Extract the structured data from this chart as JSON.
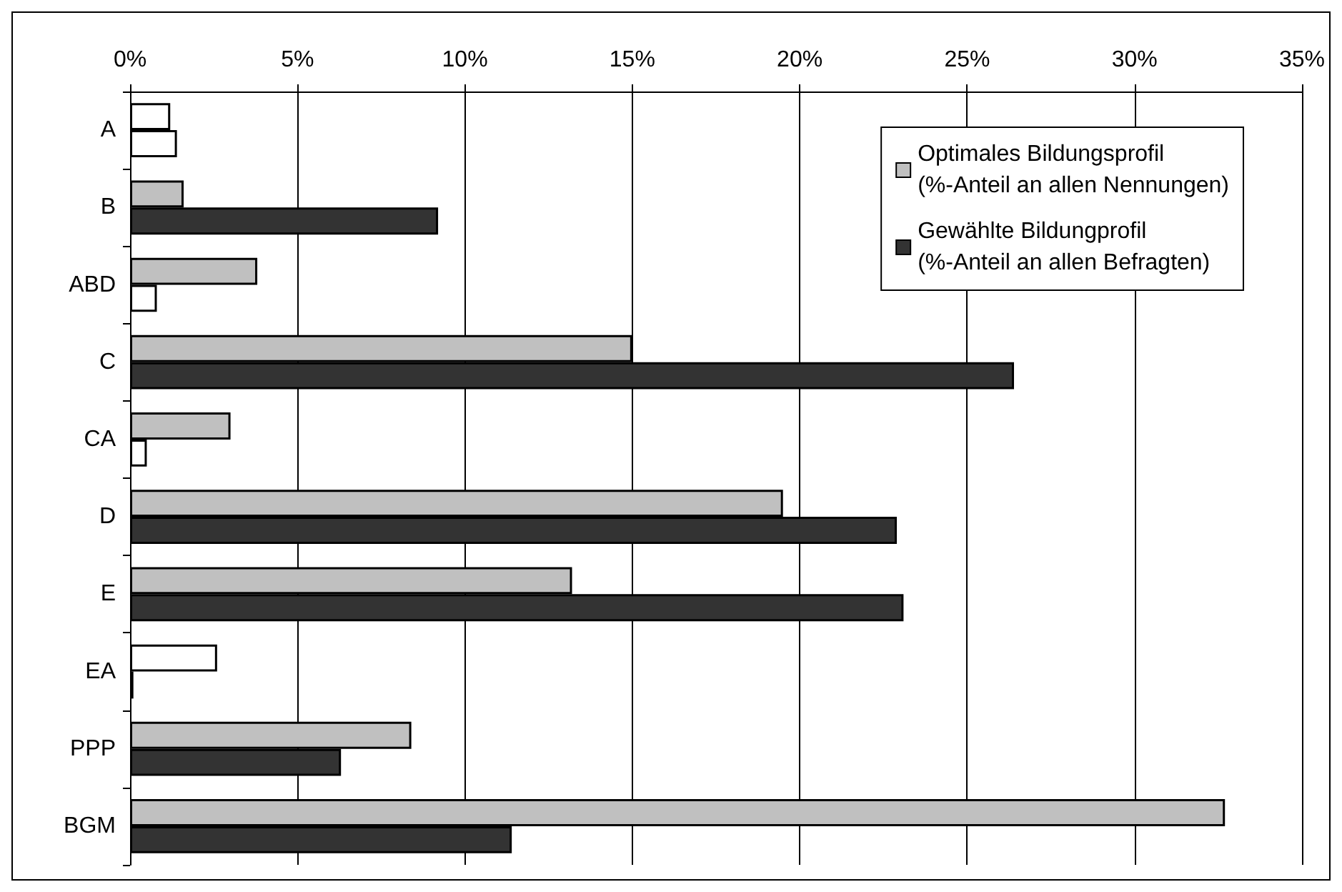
{
  "chart_data": {
    "type": "bar",
    "orientation": "horizontal",
    "categories": [
      "A",
      "B",
      "ABD",
      "C",
      "CA",
      "D",
      "E",
      "EA",
      "PPP",
      "BGM"
    ],
    "series": [
      {
        "name": "Optimales Bildungsprofil\n(%-Anteil an allen Nennungen)",
        "color": "#c0c0c0",
        "colors": [
          "#ffffff",
          "#c0c0c0",
          "#c0c0c0",
          "#c0c0c0",
          "#c0c0c0",
          "#c0c0c0",
          "#c0c0c0",
          "#ffffff",
          "#c0c0c0",
          "#c0c0c0"
        ],
        "values": [
          1.2,
          1.6,
          3.8,
          15.0,
          3.0,
          19.5,
          13.2,
          2.6,
          8.4,
          32.7
        ]
      },
      {
        "name": "Gewählte Bildungprofil\n(%-Anteil an allen Befragten)",
        "color": "#333333",
        "colors": [
          "#ffffff",
          "#333333",
          "#ffffff",
          "#333333",
          "#ffffff",
          "#333333",
          "#333333",
          "#ffffff",
          "#333333",
          "#333333"
        ],
        "values": [
          1.4,
          9.2,
          0.8,
          26.4,
          0.5,
          22.9,
          23.1,
          0.1,
          6.3,
          11.4
        ]
      }
    ],
    "xlim": [
      0,
      35
    ],
    "xticks": [
      {
        "value": 0,
        "label": "0%"
      },
      {
        "value": 5,
        "label": "5%"
      },
      {
        "value": 10,
        "label": "10%"
      },
      {
        "value": 15,
        "label": "15%"
      },
      {
        "value": 20,
        "label": "20%"
      },
      {
        "value": 25,
        "label": "25%"
      },
      {
        "value": 30,
        "label": "30%"
      },
      {
        "value": 35,
        "label": "35%"
      }
    ],
    "grid": "x",
    "legend": "top right"
  }
}
